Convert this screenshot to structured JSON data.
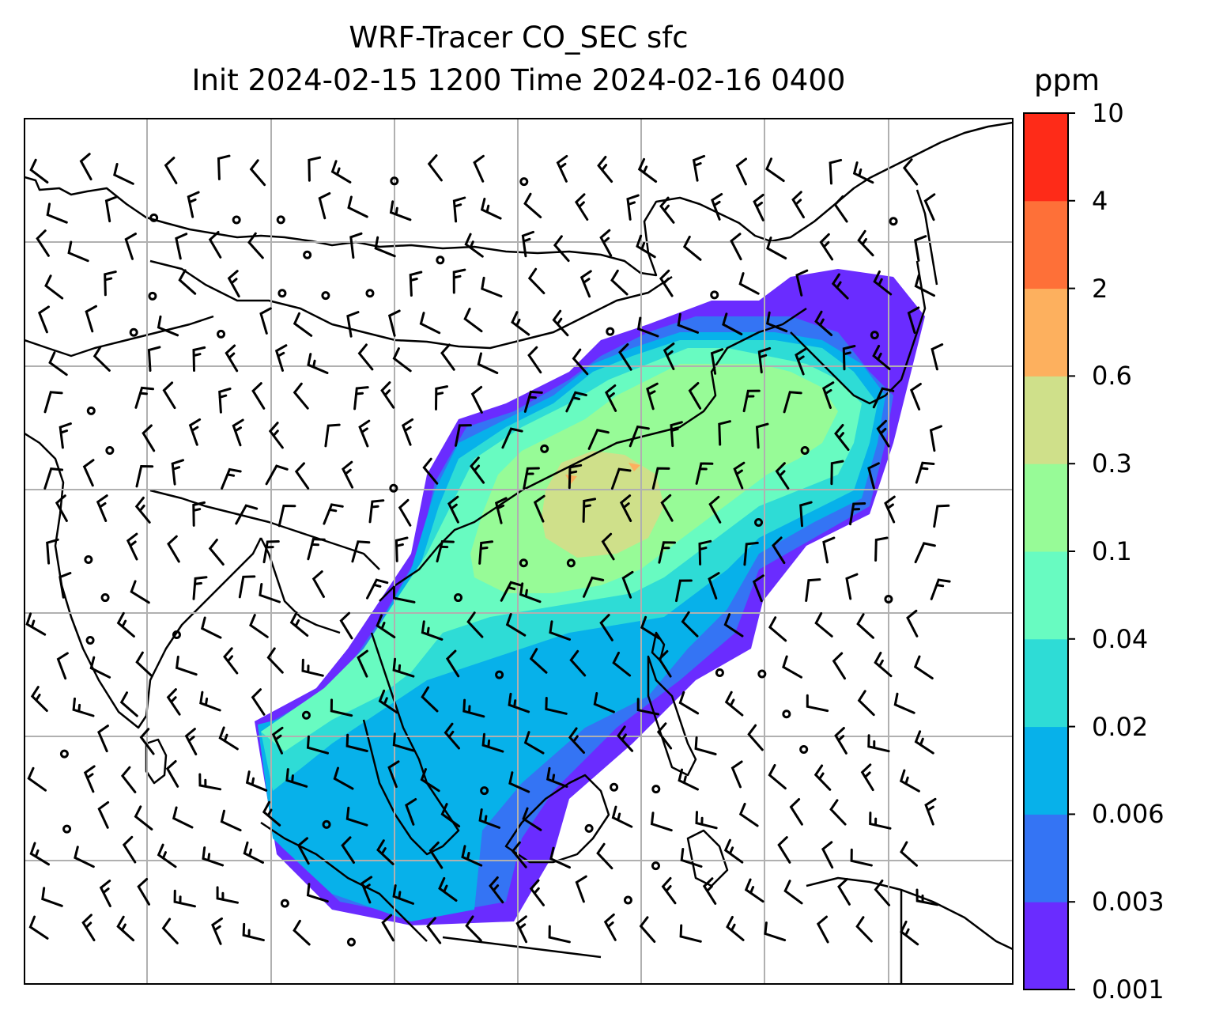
{
  "title": {
    "line1": "WRF-Tracer CO_SEC sfc",
    "line2": "Init 2024-02-15 1200 Time 2024-02-16 0400"
  },
  "colorbar": {
    "unit": "ppm",
    "ticks": [
      "0.001",
      "0.003",
      "0.006",
      "0.02",
      "0.04",
      "0.1",
      "0.3",
      "0.6",
      "2",
      "4",
      "10"
    ],
    "colors": [
      "#6a2cff",
      "#3474f4",
      "#07b1ea",
      "#2edcd6",
      "#68fbc1",
      "#97fb97",
      "#cfe08a",
      "#fdb05e",
      "#fe7038",
      "#fe2b18"
    ]
  },
  "map": {
    "gridlines": true,
    "land_color": "#ffffff",
    "coastline_color": "#000000",
    "background": "#ffffff"
  }
}
